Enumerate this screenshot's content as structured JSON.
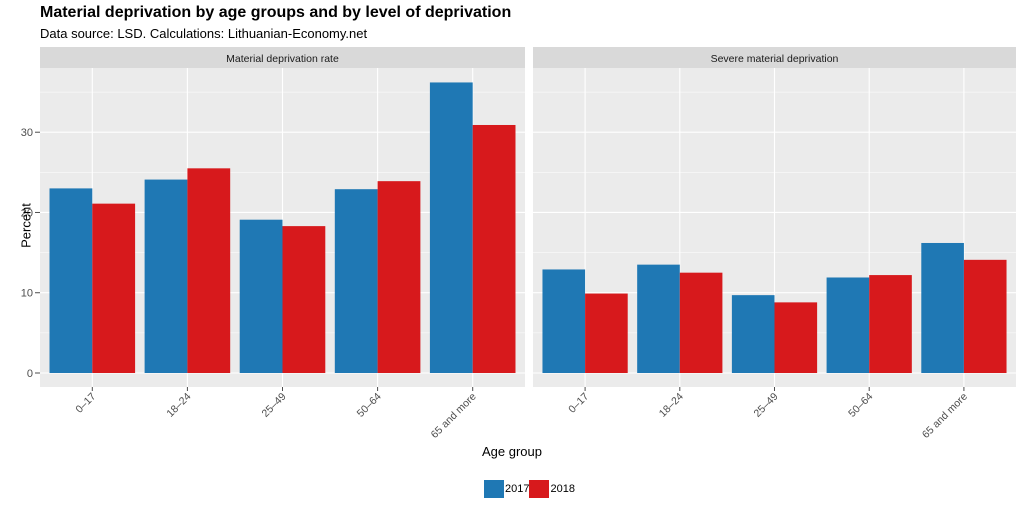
{
  "header": {
    "title": "Material deprivation by age groups and by level of deprivation",
    "subtitle": "Data source: LSD. Calculations: Lithuanian-Economy.net"
  },
  "colors": {
    "2017": "#1f78b4",
    "2018": "#d7191c",
    "panel_bg": "#ebebeb",
    "strip_bg": "#d9d9d9",
    "grid": "#ffffff"
  },
  "chart_data": {
    "type": "bar",
    "xlabel": "Age group",
    "ylabel": "Percent",
    "ylim": [
      0,
      38
    ],
    "yticks": [
      0,
      10,
      20,
      30
    ],
    "categories": [
      "0–17",
      "18–24",
      "25–49",
      "50–64",
      "65 and more"
    ],
    "legend": {
      "position": "bottom",
      "entries": [
        "2017",
        "2018"
      ]
    },
    "panels": [
      {
        "strip": "Material deprivation rate",
        "series": [
          {
            "name": "2017",
            "values": [
              23.0,
              24.1,
              19.1,
              22.9,
              36.2
            ]
          },
          {
            "name": "2018",
            "values": [
              21.1,
              25.5,
              18.3,
              23.9,
              30.9
            ]
          }
        ]
      },
      {
        "strip": "Severe material deprivation",
        "series": [
          {
            "name": "2017",
            "values": [
              12.9,
              13.5,
              9.7,
              11.9,
              16.2
            ]
          },
          {
            "name": "2018",
            "values": [
              9.9,
              12.5,
              8.8,
              12.2,
              14.1
            ]
          }
        ]
      }
    ]
  }
}
